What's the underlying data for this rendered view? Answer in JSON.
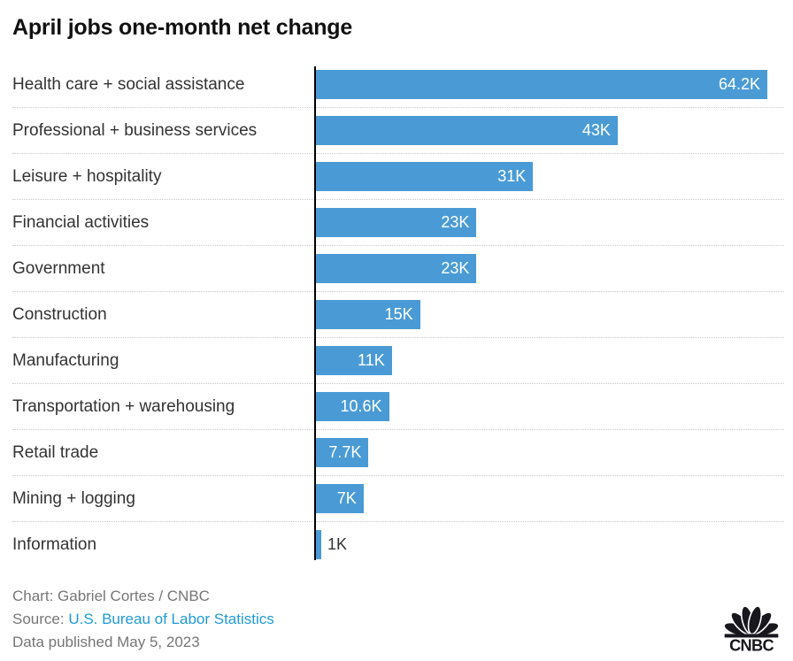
{
  "title": "April jobs one-month net change",
  "chart_data": {
    "type": "bar",
    "orientation": "horizontal",
    "title": "April jobs one-month net change",
    "xlabel": "",
    "ylabel": "",
    "xlim": [
      0,
      64.2
    ],
    "unit": "thousands of jobs",
    "grid": "dotted row separators only",
    "legend": "none",
    "categories": [
      "Health care + social assistance",
      "Professional + business services",
      "Leisure + hospitality",
      "Financial activities",
      "Government",
      "Construction",
      "Manufacturing",
      "Transportation + warehousing",
      "Retail trade",
      "Mining + logging",
      "Information"
    ],
    "values": [
      64.2,
      43,
      31,
      23,
      23,
      15,
      11,
      10.6,
      7.7,
      7,
      1
    ],
    "value_labels": [
      "64.2K",
      "43K",
      "31K",
      "23K",
      "23K",
      "15K",
      "11K",
      "10.6K",
      "7.7K",
      "7K",
      "1K"
    ],
    "label_inside": [
      true,
      true,
      true,
      true,
      true,
      true,
      true,
      true,
      true,
      true,
      false
    ]
  },
  "footer": {
    "credit": "Chart: Gabriel Cortes / CNBC",
    "source_label": "Source: ",
    "source_link": "U.S. Bureau of Labor Statistics",
    "published": "Data published May 5, 2023"
  },
  "logo": {
    "brand": "CNBC",
    "icon": "cnbc-peacock-logo"
  },
  "colors": {
    "bar": "#4a9bd5",
    "axis": "#000000",
    "separator": "#c9c9c9",
    "title_text": "#111111",
    "category_text": "#333333",
    "value_inside_text": "#ffffff",
    "value_outside_text": "#333333",
    "footer_text": "#767676",
    "link": "#1f9ad6",
    "logo": "#17171d"
  }
}
